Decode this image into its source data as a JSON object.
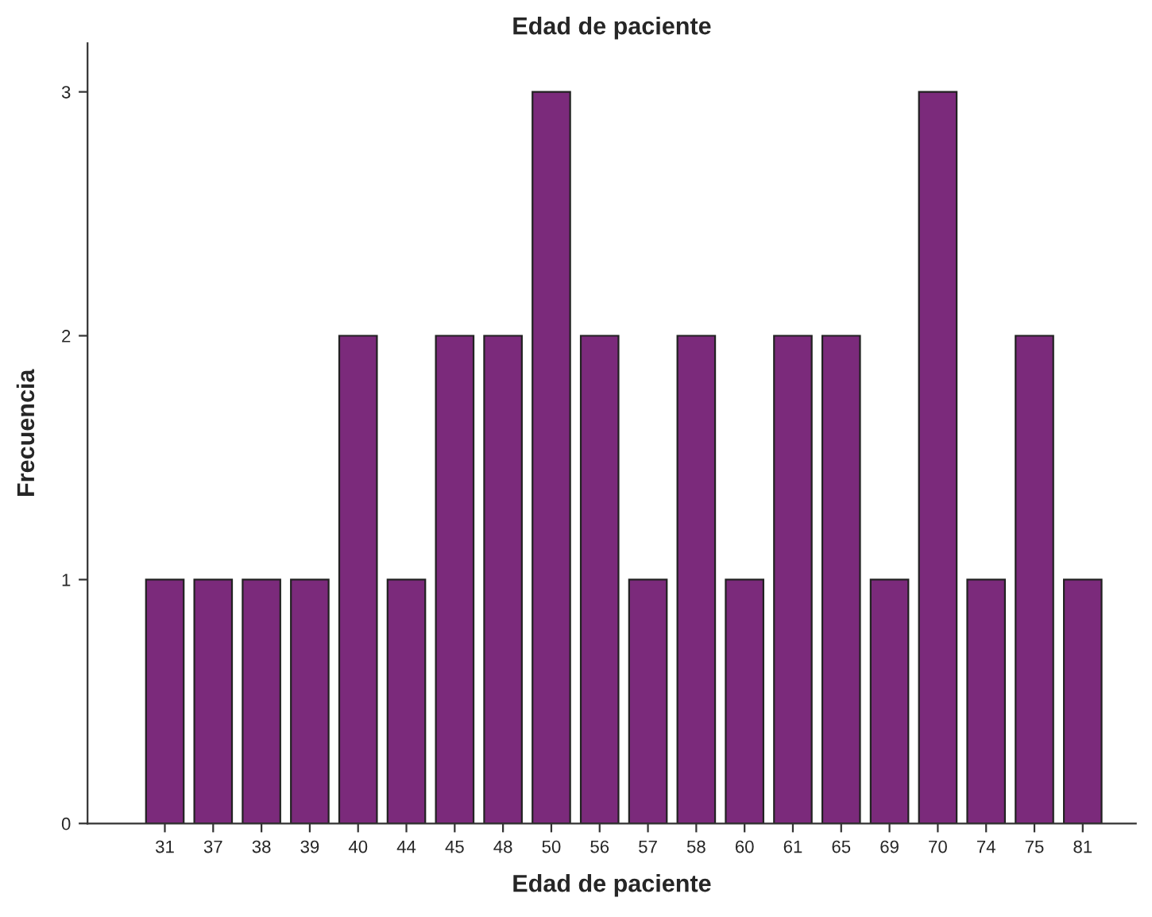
{
  "chart_data": {
    "type": "bar",
    "title": "Edad de paciente",
    "xlabel": "Edad de paciente",
    "ylabel": "Frecuencia",
    "categories": [
      "31",
      "37",
      "38",
      "39",
      "40",
      "44",
      "45",
      "48",
      "50",
      "56",
      "57",
      "58",
      "60",
      "61",
      "65",
      "69",
      "70",
      "74",
      "75",
      "81"
    ],
    "values": [
      1,
      1,
      1,
      1,
      2,
      1,
      2,
      2,
      3,
      2,
      1,
      2,
      1,
      2,
      2,
      1,
      3,
      1,
      2,
      1
    ],
    "color": "#7b2a7b",
    "ylim": [
      0,
      3.2
    ],
    "yticks": [
      0,
      1,
      2,
      3
    ],
    "grid": false,
    "legend": false
  }
}
